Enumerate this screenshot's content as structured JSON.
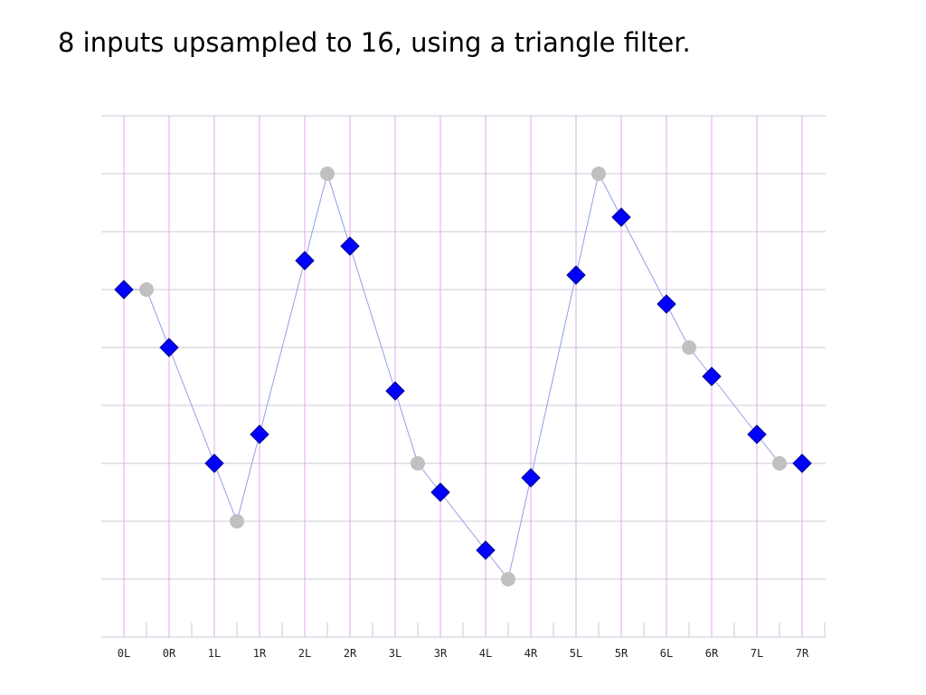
{
  "title": "8 inputs upsampled to 16, using a triangle filter.",
  "chart_data": {
    "type": "line",
    "title": "8 inputs upsampled to 16, using a triangle filter.",
    "xlabel": "",
    "ylabel": "",
    "x_tick_labels": [
      "0L",
      "0R",
      "1L",
      "1R",
      "2L",
      "2R",
      "3L",
      "3R",
      "4L",
      "4R",
      "5L",
      "5R",
      "6L",
      "6R",
      "7L",
      "7R"
    ],
    "xlim": [
      0,
      15.5
    ],
    "ylim": [
      0,
      9
    ],
    "y_tick_count": 9,
    "grid": true,
    "series": [
      {
        "role": "inputs",
        "marker": "circle",
        "color": "#c0c0c0",
        "x": [
          0.5,
          2.5,
          4.5,
          6.5,
          8.5,
          10.5,
          12.5,
          14.5
        ],
        "values": [
          6,
          2,
          8,
          3,
          1,
          8,
          5,
          3
        ]
      },
      {
        "role": "outputs",
        "marker": "diamond",
        "color": "#0000ff",
        "x": [
          0,
          1,
          2,
          3,
          4,
          5,
          6,
          7,
          8,
          9,
          10,
          11,
          12,
          13,
          14,
          15
        ],
        "values": [
          6,
          5,
          3,
          3.5,
          6.5,
          6.75,
          4.25,
          2.5,
          1.5,
          2.75,
          6.25,
          7.25,
          5.75,
          4.5,
          3.5,
          3
        ]
      }
    ],
    "line_color": "#9999ee",
    "colors": {
      "grid_vertical": "#e0a8e8",
      "grid_horizontal": "#c8c8d8",
      "axis": "#c8c8d8"
    }
  }
}
